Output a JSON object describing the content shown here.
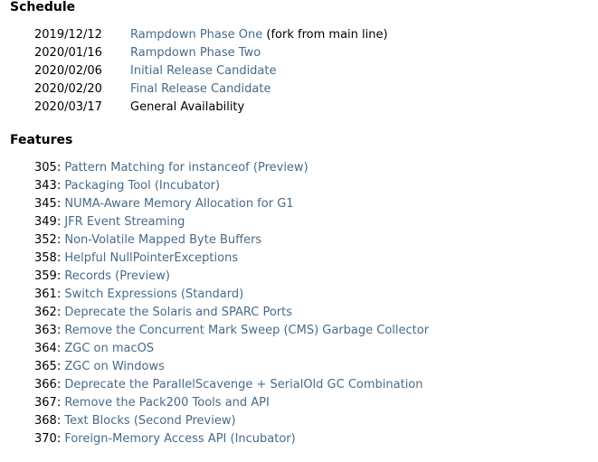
{
  "schedule": {
    "heading": "Schedule",
    "rows": [
      {
        "date": "2019/12/12",
        "milestone": "Rampdown Phase One",
        "note": "(fork from main line)"
      },
      {
        "date": "2020/01/16",
        "milestone": "Rampdown Phase Two",
        "note": ""
      },
      {
        "date": "2020/02/06",
        "milestone": "Initial Release Candidate",
        "note": ""
      },
      {
        "date": "2020/02/20",
        "milestone": "Final Release Candidate",
        "note": ""
      },
      {
        "date": "2020/03/17",
        "milestone": "General Availability",
        "note": ""
      }
    ]
  },
  "features": {
    "heading": "Features",
    "items": [
      {
        "number": "305",
        "title": "Pattern Matching for instanceof (Preview)"
      },
      {
        "number": "343",
        "title": "Packaging Tool (Incubator)"
      },
      {
        "number": "345",
        "title": "NUMA-Aware Memory Allocation for G1"
      },
      {
        "number": "349",
        "title": "JFR Event Streaming"
      },
      {
        "number": "352",
        "title": "Non-Volatile Mapped Byte Buffers"
      },
      {
        "number": "358",
        "title": "Helpful NullPointerExceptions"
      },
      {
        "number": "359",
        "title": "Records (Preview)"
      },
      {
        "number": "361",
        "title": "Switch Expressions (Standard)"
      },
      {
        "number": "362",
        "title": "Deprecate the Solaris and SPARC Ports"
      },
      {
        "number": "363",
        "title": "Remove the Concurrent Mark Sweep (CMS) Garbage Collector"
      },
      {
        "number": "364",
        "title": "ZGC on macOS"
      },
      {
        "number": "365",
        "title": "ZGC on Windows"
      },
      {
        "number": "366",
        "title": "Deprecate the ParallelScavenge + SerialOld GC Combination"
      },
      {
        "number": "367",
        "title": "Remove the Pack200 Tools and API"
      },
      {
        "number": "368",
        "title": "Text Blocks (Second Preview)"
      },
      {
        "number": "370",
        "title": "Foreign-Memory Access API (Incubator)"
      }
    ]
  },
  "colors": {
    "link": "#476b8a",
    "text": "#000000",
    "background": "#ffffff"
  }
}
